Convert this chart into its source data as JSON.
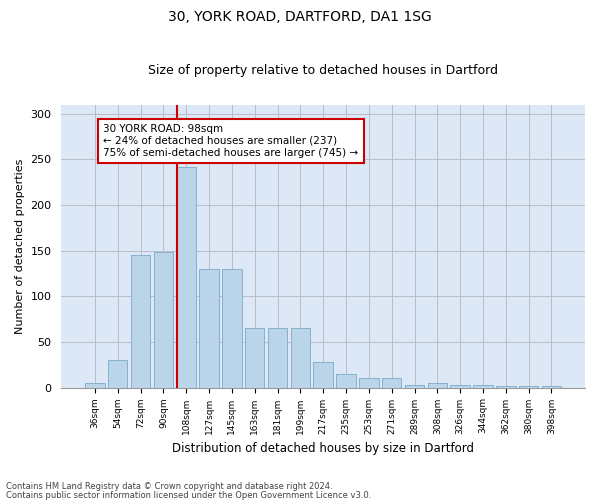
{
  "title1": "30, YORK ROAD, DARTFORD, DA1 1SG",
  "title2": "Size of property relative to detached houses in Dartford",
  "xlabel": "Distribution of detached houses by size in Dartford",
  "ylabel": "Number of detached properties",
  "categories": [
    "36sqm",
    "54sqm",
    "72sqm",
    "90sqm",
    "108sqm",
    "127sqm",
    "145sqm",
    "163sqm",
    "181sqm",
    "199sqm",
    "217sqm",
    "235sqm",
    "253sqm",
    "271sqm",
    "289sqm",
    "308sqm",
    "326sqm",
    "344sqm",
    "362sqm",
    "380sqm",
    "398sqm"
  ],
  "values": [
    5,
    30,
    145,
    148,
    242,
    130,
    130,
    65,
    65,
    65,
    28,
    15,
    10,
    10,
    3,
    5,
    3,
    3,
    2,
    2,
    2
  ],
  "bar_color": "#bad4ea",
  "bar_edge_color": "#7aaac8",
  "vline_x_index": 4.0,
  "annotation_text": "30 YORK ROAD: 98sqm\n← 24% of detached houses are smaller (237)\n75% of semi-detached houses are larger (745) →",
  "annotation_box_color": "white",
  "annotation_box_edge_color": "#cc0000",
  "vline_color": "#cc0000",
  "grid_color": "#bbbbcc",
  "background_color": "#dce8f5",
  "footer1": "Contains HM Land Registry data © Crown copyright and database right 2024.",
  "footer2": "Contains public sector information licensed under the Open Government Licence v3.0.",
  "ylim": [
    0,
    310
  ],
  "yticks": [
    0,
    50,
    100,
    150,
    200,
    250,
    300
  ]
}
